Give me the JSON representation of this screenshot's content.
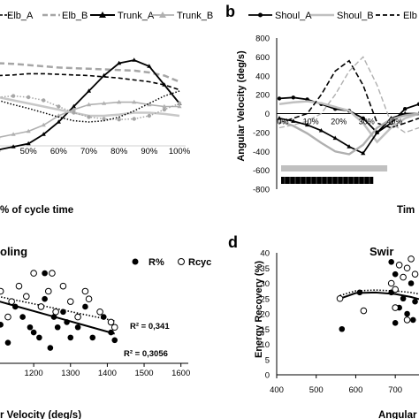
{
  "chart_data": [
    {
      "panel": "a",
      "type": "line",
      "legend": [
        "Elb_A",
        "Elb_B",
        "Trunk_A",
        "Trunk_B"
      ],
      "legend_placement": "top",
      "xlabel": "% of cycle time",
      "x_ticks": [
        "50%",
        "60%",
        "70%",
        "80%",
        "90%",
        "100%"
      ],
      "x": [
        40,
        45,
        50,
        55,
        60,
        65,
        70,
        75,
        80,
        85,
        90,
        95,
        100
      ],
      "series": [
        {
          "name": "Elb_A",
          "values": [
            35,
            36,
            38,
            38,
            37,
            36,
            35,
            33,
            31,
            28,
            25,
            20,
            12
          ]
        },
        {
          "name": "Elb_B",
          "values": [
            55,
            54,
            52,
            50,
            48,
            47,
            46,
            45,
            44,
            43,
            40,
            35,
            25
          ]
        },
        {
          "name": "Trunk_A",
          "values": [
            -85,
            -80,
            -75,
            -60,
            -40,
            -15,
            10,
            35,
            55,
            60,
            50,
            20,
            -10
          ]
        },
        {
          "name": "Trunk_B",
          "values": [
            -65,
            -60,
            -55,
            -45,
            -30,
            -20,
            -12,
            -10,
            -8,
            -8,
            -12,
            -15,
            -15
          ]
        },
        {
          "name": "grey_solid",
          "values": [
            0,
            -5,
            -10,
            -15,
            -20,
            -25,
            -30,
            -30,
            -28,
            -25,
            -25,
            -27,
            -30
          ]
        },
        {
          "name": "grey_dotted",
          "values": [
            0,
            2,
            0,
            -5,
            -15,
            -25,
            -32,
            -35,
            -36,
            -35,
            -30,
            -20,
            -10
          ]
        },
        {
          "name": "black_dotted",
          "values": [
            -5,
            -12,
            -18,
            -25,
            -32,
            -38,
            -40,
            -38,
            -32,
            -22,
            -10,
            2,
            10
          ]
        }
      ]
    },
    {
      "panel": "b",
      "type": "line",
      "label": "b",
      "legend": [
        "Shoul_A",
        "Shoul_B",
        "Elb"
      ],
      "legend_placement": "top",
      "ylabel": "Angular Velocity  (deg/s)",
      "xlabel": "Tim",
      "y_ticks": [
        "800",
        "600",
        "400",
        "200",
        "0",
        "-200",
        "-400",
        "-600",
        "-800"
      ],
      "ylim": [
        -800,
        800
      ],
      "x_ticks": [
        "0%",
        "10%",
        "20%",
        "30%",
        "40%"
      ],
      "x": [
        0,
        5,
        10,
        15,
        20,
        25,
        30,
        35,
        40,
        45,
        50
      ],
      "series": [
        {
          "name": "Shoul_A",
          "values": [
            160,
            170,
            150,
            100,
            50,
            30,
            -50,
            -200,
            -100,
            50,
            100
          ]
        },
        {
          "name": "Shoul_B",
          "values": [
            100,
            120,
            130,
            110,
            70,
            30,
            -100,
            -300,
            -150,
            -50,
            0
          ]
        },
        {
          "name": "Elb",
          "values": [
            -100,
            -50,
            0,
            200,
            450,
            560,
            300,
            -100,
            -150,
            -100,
            -50
          ]
        },
        {
          "name": "Elb_B",
          "values": [
            -150,
            -120,
            -80,
            0,
            200,
            450,
            600,
            300,
            -100,
            -200,
            -150
          ]
        },
        {
          "name": "Trunk_A",
          "values": [
            -50,
            -80,
            -120,
            -180,
            -260,
            -350,
            -420,
            -200,
            -50,
            0,
            0
          ]
        },
        {
          "name": "Trunk_B",
          "values": [
            -80,
            -130,
            -210,
            -310,
            -400,
            -430,
            -330,
            -150,
            -60,
            -20,
            0
          ]
        }
      ],
      "phase_bars": [
        {
          "style": "grey",
          "start": 0,
          "end": 38
        },
        {
          "style": "black",
          "start": 0,
          "end": 33
        }
      ]
    },
    {
      "panel": "c",
      "type": "scatter",
      "title": "oling",
      "legend": [
        "R%",
        "Rcyc"
      ],
      "legend_placement": "top-right",
      "xlabel": "r Velocity  (deg/s)",
      "x_ticks": [
        "1200",
        "1300",
        "1400",
        "1500",
        "1600"
      ],
      "xlim": [
        1070,
        1620
      ],
      "ylim": [
        0,
        45
      ],
      "annotations": [
        "R² = 0,341",
        "R² = 0,3056"
      ],
      "series": [
        {
          "name": "R%",
          "x": [
            1080,
            1110,
            1130,
            1150,
            1170,
            1190,
            1200,
            1215,
            1230,
            1245,
            1255,
            1265,
            1280,
            1300,
            1320,
            1340,
            1360,
            1390,
            1410,
            1420,
            1160,
            1230,
            1290
          ],
          "y": [
            10,
            15,
            8,
            22,
            18,
            14,
            12,
            10,
            25,
            6,
            18,
            14,
            20,
            10,
            14,
            22,
            10,
            18,
            12,
            9,
            30,
            35,
            16
          ]
        },
        {
          "name": "Rcyc",
          "x": [
            1080,
            1110,
            1140,
            1160,
            1180,
            1200,
            1220,
            1240,
            1260,
            1280,
            1300,
            1320,
            1350,
            1380,
            1410,
            1420,
            1130,
            1250,
            1340
          ],
          "y": [
            32,
            28,
            24,
            30,
            26,
            35,
            22,
            28,
            20,
            30,
            24,
            18,
            25,
            20,
            16,
            14,
            18,
            35,
            28
          ]
        }
      ]
    },
    {
      "panel": "d",
      "type": "scatter",
      "label": "d",
      "title": "Swir",
      "ylabel": "Energy Recovery (%)",
      "xlabel": "Angular",
      "x_ticks": [
        "400",
        "500",
        "600",
        "700"
      ],
      "y_ticks": [
        "0",
        "5",
        "10",
        "15",
        "20",
        "25",
        "30",
        "35",
        "40"
      ],
      "xlim": [
        400,
        760
      ],
      "ylim": [
        0,
        40
      ],
      "series": [
        {
          "name": "R%",
          "x": [
            565,
            610,
            690,
            700,
            720,
            730,
            740,
            750,
            690,
            710,
            745,
            700
          ],
          "y": [
            15,
            27,
            37,
            33,
            25,
            20,
            30,
            24,
            27,
            22,
            18,
            17
          ]
        },
        {
          "name": "Rcyc",
          "x": [
            560,
            620,
            690,
            700,
            710,
            720,
            730,
            740,
            750,
            700,
            730
          ],
          "y": [
            25,
            21,
            30,
            28,
            36,
            32,
            35,
            38,
            33,
            22,
            18
          ]
        }
      ]
    }
  ],
  "legend_a": {
    "elb_a": "Elb_A",
    "elb_b": "Elb_B",
    "trunk_a": "Trunk_A",
    "trunk_b": "Trunk_B"
  },
  "legend_b": {
    "label": "b",
    "shoul_a": "Shoul_A",
    "shoul_b": "Shoul_B",
    "elb": "Elb"
  },
  "text": {
    "a_xlabel": "% of cycle time",
    "b_ylabel": "Angular Velocity  (deg/s)",
    "b_xlabel": "Tim",
    "c_title": "oling",
    "c_legend_r": "R%",
    "c_legend_rcyc": "Rcyc",
    "c_r2_dotted": "R² = 0,341",
    "c_r2_solid": "R² = 0,3056",
    "c_xlabel": "r Velocity  (deg/s)",
    "d_label": "d",
    "d_title": "Swir",
    "d_ylabel": "Energy Recovery (%)",
    "d_xlabel": "Angular"
  },
  "colors": {
    "black": "#000000",
    "grey": "#a6a6a6",
    "light_grey": "#c8c8c8"
  }
}
